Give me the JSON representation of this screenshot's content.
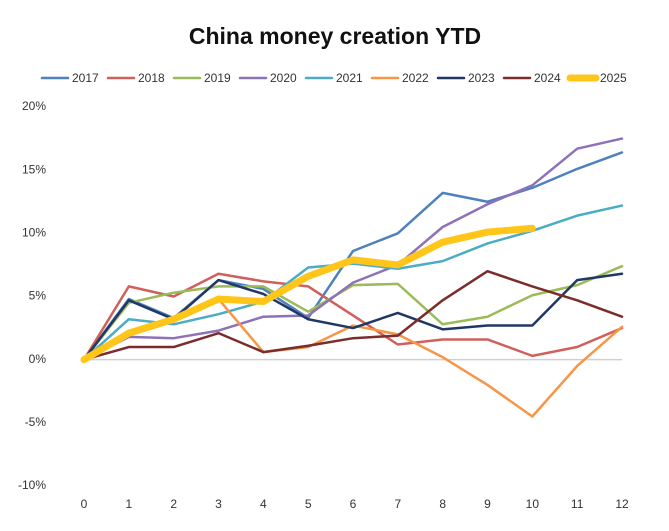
{
  "chart_data": {
    "type": "line",
    "title": "China money creation YTD",
    "x": [
      0,
      1,
      2,
      3,
      4,
      5,
      6,
      7,
      8,
      9,
      10,
      11,
      12
    ],
    "xlim": [
      0,
      12
    ],
    "xticks": [
      0,
      1,
      2,
      3,
      4,
      5,
      6,
      7,
      8,
      9,
      10,
      11,
      12
    ],
    "ylim": [
      -10,
      20
    ],
    "yticks": [
      {
        "value": -10,
        "label": "-10%"
      },
      {
        "value": -5,
        "label": "-5%"
      },
      {
        "value": 0,
        "label": "0%"
      },
      {
        "value": 5,
        "label": "5%"
      },
      {
        "value": 10,
        "label": "10%"
      },
      {
        "value": 15,
        "label": "15%"
      },
      {
        "value": 20,
        "label": "20%"
      }
    ],
    "legend": "top",
    "series": [
      {
        "name": "2017",
        "color": "#4f81bd",
        "linewidth": 2.5,
        "values": [
          0,
          4.8,
          3.3,
          6.3,
          5.6,
          3.3,
          8.6,
          10,
          13.2,
          12.5,
          13.6,
          15.1,
          16.4
        ]
      },
      {
        "name": "2018",
        "color": "#d0605c",
        "linewidth": 2.5,
        "values": [
          0,
          5.8,
          5,
          6.8,
          6.2,
          5.8,
          3.5,
          1.2,
          1.6,
          1.6,
          0.3,
          1.0,
          2.5
        ]
      },
      {
        "name": "2019",
        "color": "#9bbb59",
        "linewidth": 2.5,
        "values": [
          0,
          4.5,
          5.3,
          5.8,
          5.8,
          3.8,
          5.9,
          6.0,
          2.8,
          3.4,
          5.1,
          5.9,
          7.4
        ]
      },
      {
        "name": "2020",
        "color": "#8e72b8",
        "linewidth": 2.5,
        "values": [
          0,
          1.8,
          1.7,
          2.3,
          3.4,
          3.5,
          6.1,
          7.5,
          10.5,
          12.3,
          13.8,
          16.7,
          17.5
        ]
      },
      {
        "name": "2021",
        "color": "#4bacc6",
        "linewidth": 2.5,
        "values": [
          0,
          3.2,
          2.8,
          3.6,
          4.6,
          7.3,
          7.6,
          7.2,
          7.8,
          9.2,
          10.2,
          11.4,
          12.2
        ]
      },
      {
        "name": "2022",
        "color": "#f79646",
        "linewidth": 2.5,
        "values": [
          0,
          2.0,
          3.3,
          4.8,
          0.6,
          1.0,
          2.7,
          2.0,
          0.2,
          -2.0,
          -4.5,
          -0.5,
          2.6
        ]
      },
      {
        "name": "2023",
        "color": "#203864",
        "linewidth": 2.5,
        "values": [
          0,
          4.7,
          3.2,
          6.3,
          5.2,
          3.2,
          2.5,
          3.7,
          2.4,
          2.7,
          2.7,
          6.3,
          6.8
        ]
      },
      {
        "name": "2024",
        "color": "#7b2c2c",
        "linewidth": 2.5,
        "values": [
          0,
          1.0,
          1.0,
          2.1,
          0.6,
          1.1,
          1.7,
          1.9,
          4.7,
          7.0,
          5.8,
          4.7,
          3.4
        ]
      },
      {
        "name": "2025",
        "color": "#ffc619",
        "linewidth": 7,
        "values": [
          0,
          2.1,
          3.2,
          4.8,
          4.6,
          6.6,
          7.9,
          7.5,
          9.3,
          10.1,
          10.4,
          null,
          null
        ]
      }
    ]
  }
}
